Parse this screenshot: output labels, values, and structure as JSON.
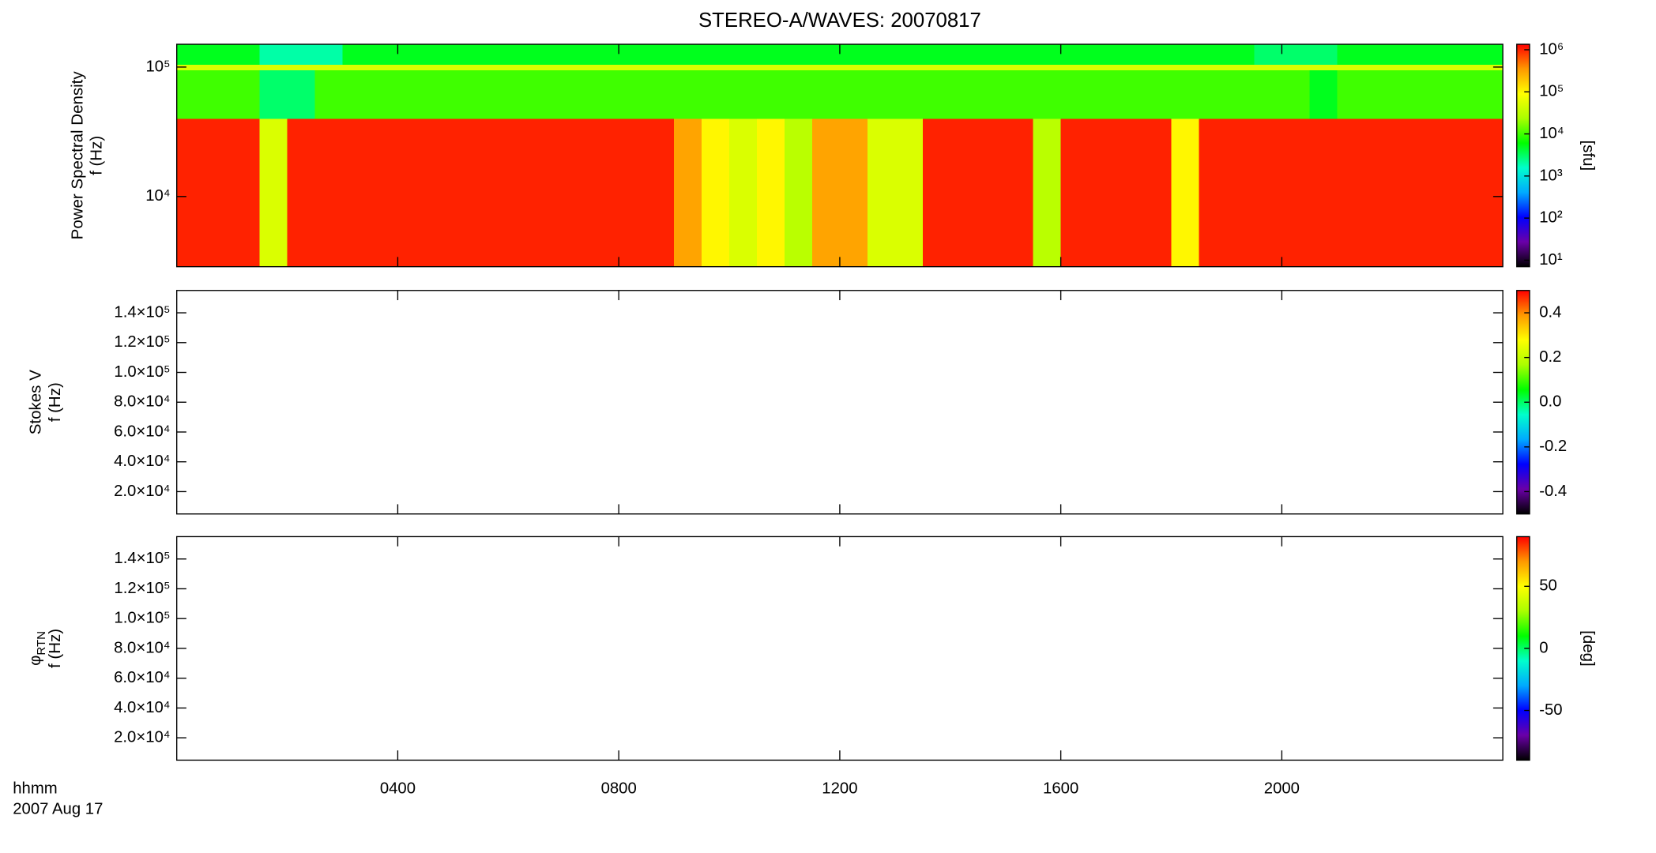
{
  "title": "STEREO-A/WAVES: 20070817",
  "x_axis": {
    "xlim": [
      0,
      24
    ],
    "xticks": [
      {
        "value": 4,
        "label": "0400"
      },
      {
        "value": 8,
        "label": "0800"
      },
      {
        "value": 12,
        "label": "1200"
      },
      {
        "value": 16,
        "label": "1600"
      },
      {
        "value": 20,
        "label": "2000"
      }
    ],
    "label_lines": [
      "hhmm",
      "2007 Aug 17"
    ]
  },
  "colormap": [
    "#000000",
    "#6a00a8",
    "#0000ff",
    "#00aaff",
    "#00ffcc",
    "#00ff00",
    "#aaff00",
    "#ffff00",
    "#ff9900",
    "#ff0000"
  ],
  "chart_data": [
    {
      "type": "heatmap",
      "ylabel": [
        "Power Spectral Density",
        "f (Hz)"
      ],
      "ylog": true,
      "ylim": [
        2870,
        150000
      ],
      "yticks": [
        {
          "value": 10000,
          "label": "10⁴"
        },
        {
          "value": 100000,
          "label": "10⁵"
        }
      ],
      "zlog": true,
      "zlim": [
        7,
        1350000
      ],
      "zlabel": "[sfu]",
      "zticks": [
        {
          "value": 10,
          "label": "10¹"
        },
        {
          "value": 100,
          "label": "10²"
        },
        {
          "value": 1000,
          "label": "10³"
        },
        {
          "value": 10000,
          "label": "10⁴"
        },
        {
          "value": 100000,
          "label": "10⁵"
        },
        {
          "value": 1000000,
          "label": "10⁶"
        }
      ],
      "x": [
        0,
        0.5,
        1,
        1.5,
        2,
        2.5,
        3,
        3.5,
        4,
        4.5,
        5,
        5.5,
        6,
        6.5,
        7,
        7.5,
        8,
        8.5,
        9,
        9.5,
        10,
        10.5,
        11,
        11.5,
        12,
        12.5,
        13,
        13.5,
        14,
        14.5,
        15,
        15.5,
        16,
        16.5,
        17,
        17.5,
        18,
        18.5,
        19,
        19.5,
        20,
        20.5,
        21,
        21.5,
        22,
        22.5,
        23,
        23.5
      ],
      "y_edges": [
        2870,
        40000,
        95000,
        105000,
        150000
      ],
      "z": [
        [
          1000000,
          1000000,
          1000000,
          50000,
          1000000,
          1000000,
          1000000,
          1000000,
          1000000,
          1000000,
          1000000,
          1000000,
          1000000,
          1000000,
          1000000,
          1000000,
          1000000,
          1000000,
          300000,
          100000,
          50000,
          100000,
          30000,
          300000,
          300000,
          50000,
          50000,
          1000000,
          1000000,
          1000000,
          1000000,
          30000,
          1000000,
          1000000,
          1000000,
          1000000,
          100000,
          1000000,
          1000000,
          1000000,
          1000000,
          1000000,
          1000000,
          1000000,
          1000000,
          1000000,
          1000000,
          1000000
        ],
        [
          10000,
          10000,
          10000,
          3000,
          3000,
          10000,
          10000,
          10000,
          10000,
          10000,
          10000,
          10000,
          10000,
          10000,
          10000,
          10000,
          10000,
          10000,
          10000,
          10000,
          10000,
          10000,
          10000,
          10000,
          10000,
          10000,
          10000,
          10000,
          10000,
          10000,
          10000,
          10000,
          10000,
          10000,
          10000,
          10000,
          10000,
          10000,
          10000,
          10000,
          10000,
          5000,
          10000,
          10000,
          10000,
          10000,
          10000,
          10000
        ],
        [
          50000,
          50000,
          50000,
          50000,
          50000,
          50000,
          50000,
          50000,
          50000,
          50000,
          50000,
          50000,
          50000,
          50000,
          50000,
          50000,
          50000,
          50000,
          50000,
          50000,
          50000,
          50000,
          50000,
          50000,
          50000,
          50000,
          50000,
          50000,
          50000,
          50000,
          50000,
          50000,
          50000,
          50000,
          50000,
          50000,
          50000,
          50000,
          50000,
          50000,
          50000,
          50000,
          50000,
          50000,
          50000,
          50000,
          50000,
          50000
        ],
        [
          5000,
          5000,
          5000,
          2000,
          2000,
          2000,
          5000,
          5000,
          5000,
          5000,
          5000,
          5000,
          5000,
          5000,
          5000,
          5000,
          5000,
          5000,
          5000,
          5000,
          5000,
          5000,
          5000,
          5000,
          5000,
          5000,
          5000,
          5000,
          5000,
          5000,
          5000,
          5000,
          5000,
          5000,
          5000,
          5000,
          5000,
          5000,
          5000,
          3000,
          3000,
          3000,
          5000,
          5000,
          5000,
          5000,
          5000,
          5000
        ]
      ]
    },
    {
      "type": "heatmap",
      "ylabel": [
        "Stokes V",
        "f (Hz)"
      ],
      "ylog": false,
      "ylim": [
        5000,
        155000
      ],
      "yticks": [
        {
          "value": 20000,
          "label": "2.0×10⁴"
        },
        {
          "value": 40000,
          "label": "4.0×10⁴"
        },
        {
          "value": 60000,
          "label": "6.0×10⁴"
        },
        {
          "value": 80000,
          "label": "8.0×10⁴"
        },
        {
          "value": 100000,
          "label": "1.0×10⁵"
        },
        {
          "value": 120000,
          "label": "1.2×10⁵"
        },
        {
          "value": 140000,
          "label": "1.4×10⁵"
        }
      ],
      "zlog": false,
      "zlim": [
        -0.5,
        0.5
      ],
      "zticks": [
        -0.4,
        -0.2,
        {
          "value": 0,
          "label": "0.0"
        },
        0.2,
        0.4
      ]
    },
    {
      "type": "heatmap",
      "ylabel": [
        "f (Hz)"
      ],
      "ylabel_symbol": "φ",
      "ylabel_sub": "RTN",
      "ylog": false,
      "ylim": [
        5000,
        155000
      ],
      "yticks": [
        {
          "value": 20000,
          "label": "2.0×10⁴"
        },
        {
          "value": 40000,
          "label": "4.0×10⁴"
        },
        {
          "value": 60000,
          "label": "6.0×10⁴"
        },
        {
          "value": 80000,
          "label": "8.0×10⁴"
        },
        {
          "value": 100000,
          "label": "1.0×10⁵"
        },
        {
          "value": 120000,
          "label": "1.2×10⁵"
        },
        {
          "value": 140000,
          "label": "1.4×10⁵"
        }
      ],
      "zlog": false,
      "zlim": [
        -90,
        90
      ],
      "zlabel": "[deg]",
      "zticks": [
        -50,
        0,
        50
      ]
    }
  ]
}
